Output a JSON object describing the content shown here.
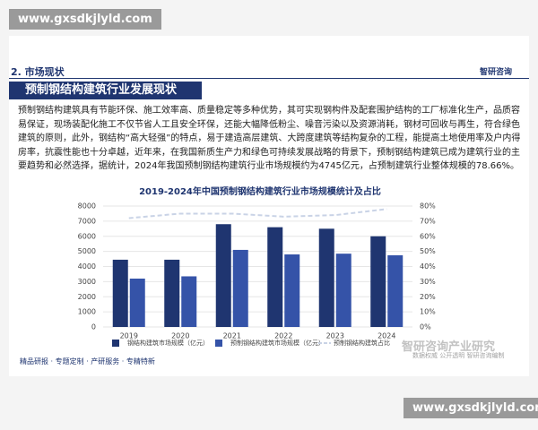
{
  "watermark_top": "www.gxsdkjlyld.com",
  "section": "2. 市场现状",
  "brand": "智研咨询",
  "heading": "预制钢结构建筑行业发展现状",
  "paragraph": "预制钢结构建筑具有节能环保、施工效率高、质量稳定等多种优势，其可实现钢构件及配套围护结构的工厂标准化生产，品质容易保证，现场装配化施工不仅节省人工且安全环保，还能大幅降低粉尘、噪音污染以及资源消耗，钢材可回收与再生，符合绿色建筑的原则，此外，钢结构“高大轻强”的特点，易于建造高层建筑、大跨度建筑等结构复杂的工程，能提高土地使用率及户内得房率，抗震性能也十分卓越，近年来，在我国新质生产力和绿色可持续发展战略的背景下，预制钢结构建筑已成为建筑行业的主要趋势和必然选择，据统计，2024年我国预制钢结构建筑行业市场规模约为4745亿元，占预制建筑行业整体规模的78.66%。",
  "chart_data": {
    "type": "bar",
    "title": "2019-2024年中国预制钢结构建筑行业市场规模统计及占比",
    "categories": [
      "2019",
      "2020",
      "2021",
      "2022",
      "2023",
      "2024"
    ],
    "series": [
      {
        "name": "钢结构建筑市场规模（亿元）",
        "color": "#1f3570",
        "values": [
          4450,
          4450,
          6800,
          6600,
          6500,
          6000
        ]
      },
      {
        "name": "预制钢结构建筑市场规模（亿元）",
        "color": "#3553a8",
        "values": [
          3200,
          3350,
          5100,
          4800,
          4850,
          4745
        ]
      },
      {
        "name": "预制钢结构建筑占比",
        "color": "#c9d3e6",
        "type": "line",
        "axis": "y2",
        "values": [
          72,
          75,
          75,
          73,
          74,
          78
        ]
      }
    ],
    "ylim": [
      0,
      8000
    ],
    "yticks": [
      0,
      1000,
      2000,
      3000,
      4000,
      5000,
      6000,
      7000,
      8000
    ],
    "y2lim": [
      0,
      80
    ],
    "y2ticks": [
      {
        "value": 0,
        "label": "0%"
      },
      {
        "value": 10,
        "label": "10%"
      },
      {
        "value": 20,
        "label": "20%"
      },
      {
        "value": 30,
        "label": "30%"
      },
      {
        "value": 40,
        "label": "40%"
      },
      {
        "value": 50,
        "label": "50%"
      },
      {
        "value": 60,
        "label": "60%"
      },
      {
        "value": 70,
        "label": "70%"
      },
      {
        "value": 80,
        "label": "80%"
      }
    ],
    "grid": true
  },
  "overlay_title": "智研咨询产业研究",
  "overlay_sub": "数据权威 公开透明 智研咨询编制",
  "footer": "精品研报 · 专题定制 · 产研服务 · 专精特新",
  "watermark_bottom": "www.gxsdkjlyld.com"
}
